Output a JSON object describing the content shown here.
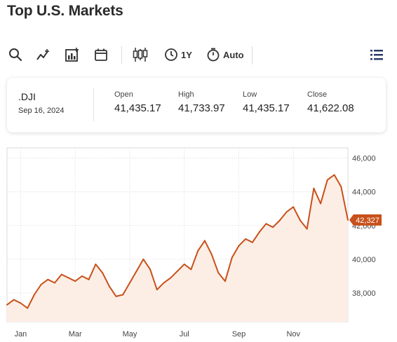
{
  "page": {
    "title": "Top U.S. Markets"
  },
  "toolbar": {
    "range_label": "1Y",
    "interval_label": "Auto"
  },
  "quote": {
    "symbol": ".DJI",
    "date": "Sep 16, 2024",
    "open_label": "Open",
    "open": "41,435.17",
    "high_label": "High",
    "high": "41,733.97",
    "low_label": "Low",
    "low": "41,435.17",
    "close_label": "Close",
    "close": "41,622.08"
  },
  "colors": {
    "line": "#c8501a",
    "fill": "#fdeee5",
    "grid": "#d9d9d9"
  },
  "chart_data": {
    "type": "area",
    "x_tick_labels": [
      "Jan",
      "Mar",
      "May",
      "Jul",
      "Sep",
      "Nov"
    ],
    "y_ticks": [
      38000,
      40000,
      42000,
      44000,
      46000
    ],
    "y_tick_labels": [
      "38,000",
      "40,000",
      "42,000",
      "44,000",
      "46,000"
    ],
    "ylim": [
      36300,
      46600
    ],
    "current_value": 42327,
    "current_label": "42,327",
    "grid": true,
    "x_index_range": [
      0,
      50
    ],
    "x_tick_index": [
      2,
      10,
      18,
      26,
      34,
      42
    ],
    "series": [
      {
        "values": [
          37300,
          37600,
          37400,
          37100,
          37900,
          38500,
          38800,
          38600,
          39100,
          38900,
          38700,
          39000,
          38800,
          39700,
          39200,
          38400,
          37800,
          37900,
          38600,
          39300,
          40000,
          39400,
          38200,
          38600,
          38900,
          39300,
          39700,
          39400,
          40500,
          41100,
          40300,
          39200,
          38700,
          40100,
          40800,
          41200,
          41000,
          41600,
          42100,
          41900,
          42300,
          42800,
          43100,
          42300,
          41800,
          44200,
          43300,
          44700,
          45000,
          44300,
          42327
        ]
      }
    ]
  }
}
